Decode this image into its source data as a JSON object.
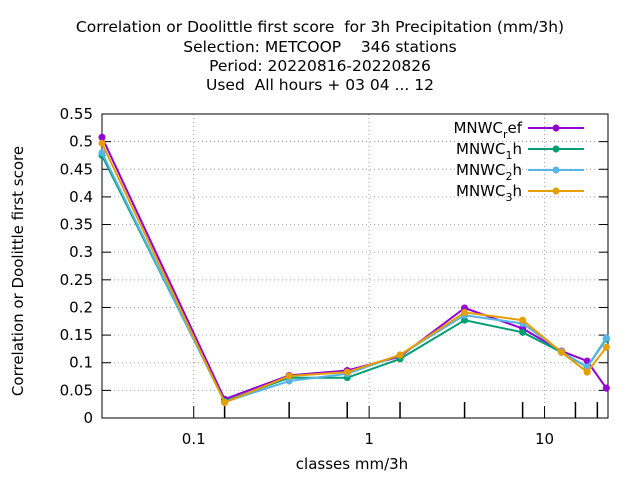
{
  "chart_data": {
    "type": "line",
    "title_lines": [
      "Correlation or Doolittle first score  for 3h Precipitation (mm/3h)",
      "Selection: METCOOP    346 stations",
      "Period: 20220816-20220826",
      "Used  All hours + 03 04 ... 12"
    ],
    "xlabel": "classes mm/3h",
    "ylabel": "Correlation or Doolittle first score",
    "x_scale": "log",
    "xlim": [
      0.03,
      23
    ],
    "ylim": [
      0,
      0.55
    ],
    "x_ticks": [
      0.1,
      1,
      10
    ],
    "x_tick_labels": [
      "0.1",
      "1",
      "10"
    ],
    "y_ticks": [
      0,
      0.05,
      0.1,
      0.15,
      0.2,
      0.25,
      0.3,
      0.35,
      0.4,
      0.45,
      0.5,
      0.55
    ],
    "y_tick_labels": [
      "0",
      "0.05",
      "0.1",
      "0.15",
      "0.2",
      "0.25",
      "0.3",
      "0.35",
      "0.4",
      "0.45",
      "0.5",
      "0.55"
    ],
    "x_class_marks": [
      0.03,
      0.15,
      0.35,
      0.75,
      1.5,
      3.5,
      7.5,
      15,
      20,
      23
    ],
    "grid": true,
    "legend_position": "top-right",
    "x": [
      0.03,
      0.15,
      0.35,
      0.75,
      1.5,
      3.5,
      7.5,
      12.5,
      17.5,
      22.5
    ],
    "series": [
      {
        "name_main": "MNWC",
        "name_sub": "r",
        "name_tail": "ef",
        "color": "#9400d3",
        "values": [
          0.508,
          0.034,
          0.077,
          0.086,
          0.111,
          0.199,
          0.162,
          0.121,
          0.103,
          0.054
        ]
      },
      {
        "name_main": "MNWC",
        "name_sub": "1",
        "name_tail": "h",
        "color": "#009e73",
        "values": [
          0.475,
          0.03,
          0.073,
          0.073,
          0.107,
          0.177,
          0.155,
          0.119,
          0.092,
          0.143
        ]
      },
      {
        "name_main": "MNWC",
        "name_sub": "2",
        "name_tail": "h",
        "color": "#56b4e9",
        "values": [
          0.48,
          0.029,
          0.067,
          0.08,
          0.114,
          0.186,
          0.171,
          0.12,
          0.092,
          0.145
        ]
      },
      {
        "name_main": "MNWC",
        "name_sub": "3",
        "name_tail": "h",
        "color": "#e69f00",
        "values": [
          0.497,
          0.028,
          0.076,
          0.083,
          0.114,
          0.191,
          0.177,
          0.119,
          0.083,
          0.128
        ]
      }
    ]
  }
}
